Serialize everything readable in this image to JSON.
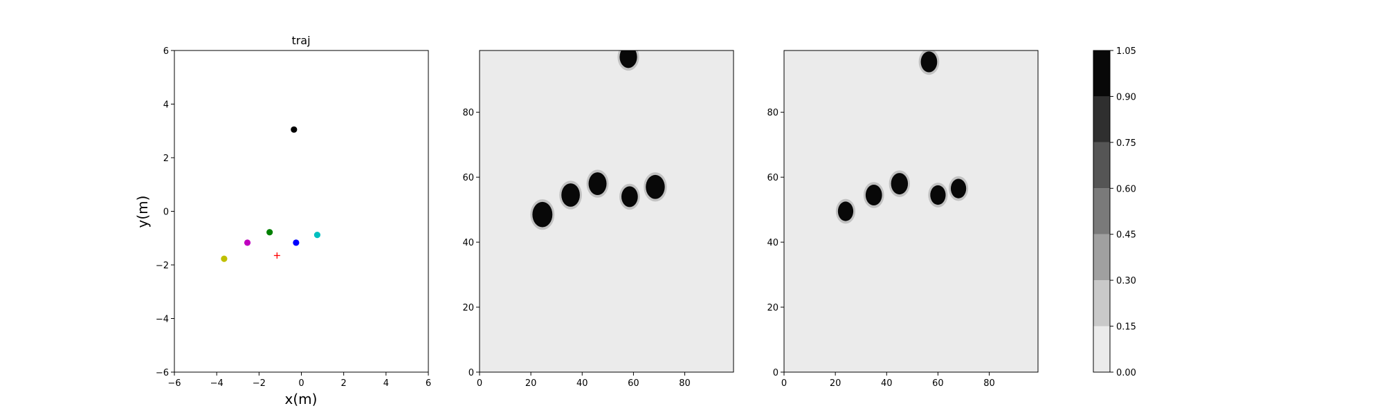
{
  "chart_data": [
    {
      "type": "scatter",
      "title": "traj",
      "xlabel": "x(m)",
      "ylabel": "y(m)",
      "xlim": [
        -6,
        6
      ],
      "ylim": [
        -6,
        6
      ],
      "xticks": [
        "−6",
        "−4",
        "−2",
        "0",
        "2",
        "4",
        "6"
      ],
      "yticks": [
        "−6",
        "−4",
        "−2",
        "0",
        "2",
        "4",
        "6"
      ],
      "grid": false,
      "points": [
        {
          "x": -0.35,
          "y": 3.05,
          "color": "#000000",
          "marker": "o"
        },
        {
          "x": -1.5,
          "y": -0.78,
          "color": "#008000",
          "marker": "o"
        },
        {
          "x": -2.55,
          "y": -1.17,
          "color": "#bf00bf",
          "marker": "o"
        },
        {
          "x": -0.25,
          "y": -1.17,
          "color": "#0000ff",
          "marker": "o"
        },
        {
          "x": 0.75,
          "y": -0.88,
          "color": "#00bfbf",
          "marker": "o"
        },
        {
          "x": -3.65,
          "y": -1.77,
          "color": "#bfbf00",
          "marker": "o"
        },
        {
          "x": -1.15,
          "y": -1.65,
          "color": "#ff0000",
          "marker": "+"
        }
      ]
    },
    {
      "type": "heatmap",
      "title": "",
      "xlim": [
        0,
        99
      ],
      "ylim": [
        0,
        99
      ],
      "xticks": [
        "0",
        "20",
        "40",
        "60",
        "80"
      ],
      "yticks": [
        "0",
        "20",
        "40",
        "60",
        "80"
      ],
      "background_level": 0.0,
      "blobs": [
        {
          "x": 58,
          "y": 97,
          "r": 3.4,
          "level": 1.05
        },
        {
          "x": 24.5,
          "y": 48.5,
          "r": 3.9,
          "level": 1.05
        },
        {
          "x": 35.5,
          "y": 54.5,
          "r": 3.6,
          "level": 1.05
        },
        {
          "x": 46,
          "y": 58,
          "r": 3.5,
          "level": 1.05
        },
        {
          "x": 58.5,
          "y": 54,
          "r": 3.2,
          "level": 1.05
        },
        {
          "x": 68.5,
          "y": 57,
          "r": 3.7,
          "level": 1.05
        }
      ]
    },
    {
      "type": "heatmap",
      "title": "",
      "xlim": [
        0,
        99
      ],
      "ylim": [
        0,
        99
      ],
      "xticks": [
        "0",
        "20",
        "40",
        "60",
        "80"
      ],
      "yticks": [
        "0",
        "20",
        "40",
        "60",
        "80"
      ],
      "background_level": 0.0,
      "blobs": [
        {
          "x": 56.5,
          "y": 95.5,
          "r": 3.2,
          "level": 1.05
        },
        {
          "x": 24,
          "y": 49.5,
          "r": 3.0,
          "level": 1.05
        },
        {
          "x": 35,
          "y": 54.5,
          "r": 3.2,
          "level": 1.05
        },
        {
          "x": 45,
          "y": 58,
          "r": 3.3,
          "level": 1.05
        },
        {
          "x": 60,
          "y": 54.5,
          "r": 3.0,
          "level": 1.05
        },
        {
          "x": 68,
          "y": 56.5,
          "r": 3.0,
          "level": 1.05
        }
      ]
    }
  ],
  "colorbar": {
    "levels": [
      0.0,
      0.15,
      0.3,
      0.45,
      0.6,
      0.75,
      0.9,
      1.05
    ],
    "tick_labels": [
      "0.00",
      "0.15",
      "0.30",
      "0.45",
      "0.60",
      "0.75",
      "0.90",
      "1.05"
    ],
    "band_colors": [
      "#ebebeb",
      "#c9c9c9",
      "#a0a0a0",
      "#7a7a7a",
      "#555555",
      "#2f2f2f",
      "#080808"
    ]
  }
}
